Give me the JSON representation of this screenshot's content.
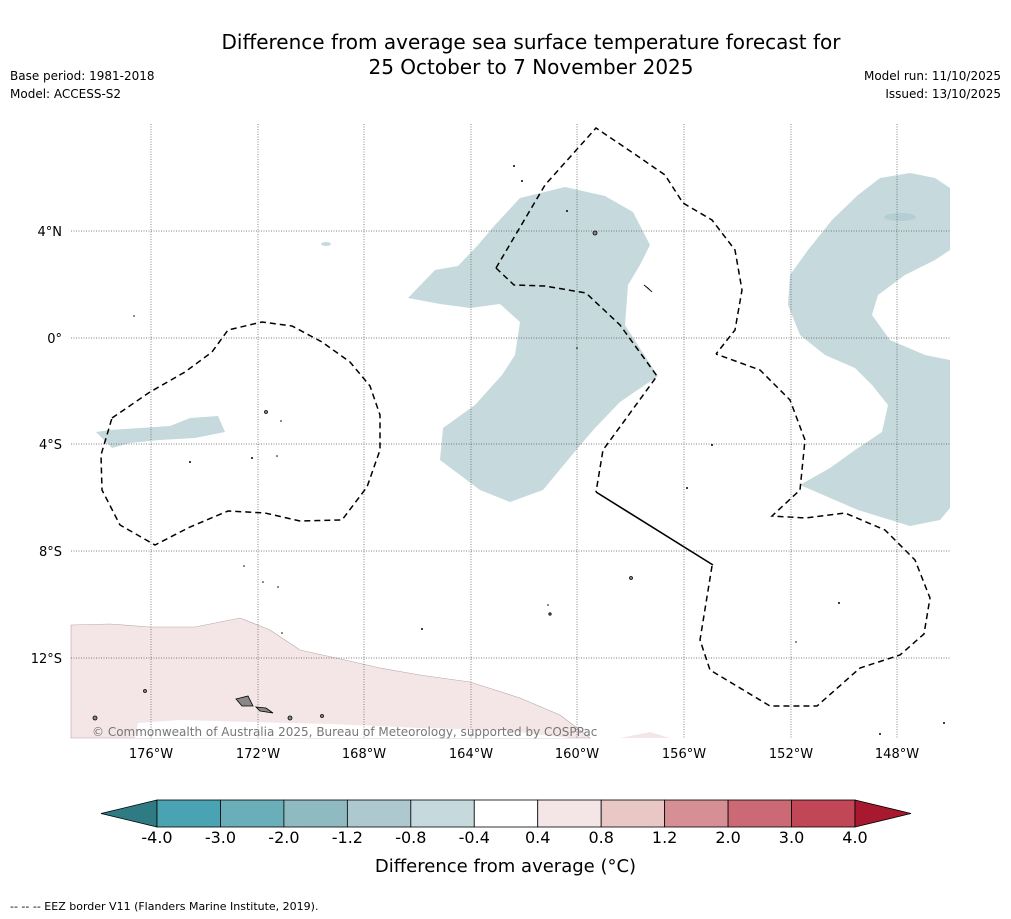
{
  "title_line1": "Difference from average sea surface temperature forecast for",
  "title_line2": "25 October to 7 November 2025",
  "base_period": "Base period: 1981-2018",
  "model": "Model: ACCESS-S2",
  "model_run": "Model run: 11/10/2025",
  "issued": "Issued: 13/10/2025",
  "copyright": "© Commonwealth of Australia 2025, Bureau of Meteorology, supported by COSPPac",
  "lon_labels": [
    "176°W",
    "172°W",
    "168°W",
    "164°W",
    "160°W",
    "156°W",
    "152°W",
    "148°W"
  ],
  "lat_labels": [
    "4°N",
    "0°",
    "4°S",
    "8°S",
    "12°S"
  ],
  "colorbar": {
    "ticks": [
      "-4.0",
      "-3.0",
      "-2.0",
      "-1.2",
      "-0.8",
      "-0.4",
      "0.4",
      "0.8",
      "1.2",
      "2.0",
      "3.0",
      "4.0"
    ],
    "colors": [
      "#2e7b84",
      "#4aa3b3",
      "#6aaeba",
      "#8fbac1",
      "#adc8ce",
      "#c6dadd",
      "#ffffff",
      "#f4e6e7",
      "#e8c7c4",
      "#d68f94",
      "#cb6a74",
      "#c14757",
      "#a8182e"
    ],
    "label": "Difference from average (°C)"
  },
  "legend_footnote": "--  --  -- EEZ border V11 (Flanders Marine Institute, 2019)."
}
